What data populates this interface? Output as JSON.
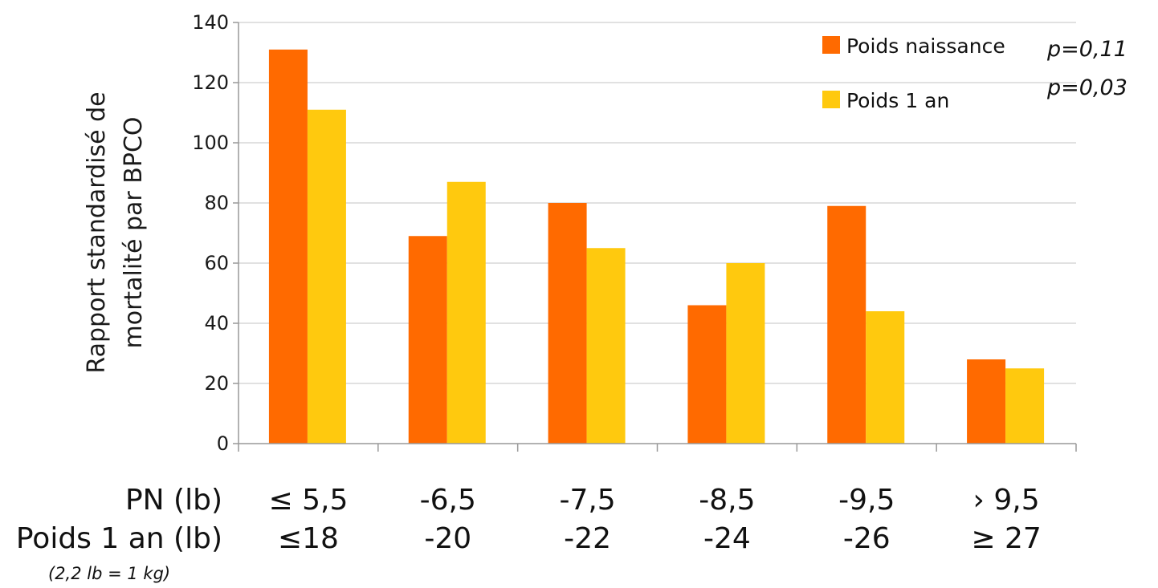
{
  "chart_data": {
    "type": "bar",
    "categories_pn": [
      "≤ 5,5",
      "-6,5",
      "-7,5",
      "-8,5",
      "-9,5",
      "› 9,5"
    ],
    "categories_poids": [
      "≤18",
      "-20",
      "-22",
      "-24",
      "-26",
      "≥ 27"
    ],
    "row_labels": {
      "pn": "PN (lb)",
      "poids": "Poids 1 an (lb)"
    },
    "note": "(2,2 lb = 1 kg)",
    "ylabel_line1": "Rapport standardisé de",
    "ylabel_line2": "mortalité par BPCO",
    "yticks": [
      "0",
      "20",
      "40",
      "60",
      "80",
      "100",
      "120",
      "140"
    ],
    "ylim": [
      0,
      140
    ],
    "grid": true,
    "legend_position": "top-right",
    "series": [
      {
        "name": "Poids naissance",
        "p": "p=0,11",
        "color": "#ff6a00",
        "values": [
          131,
          69,
          80,
          46,
          79,
          28
        ]
      },
      {
        "name": "Poids 1 an",
        "p": "p=0,03",
        "color": "#ffc90e",
        "values": [
          111,
          87,
          65,
          60,
          44,
          25
        ]
      }
    ]
  }
}
